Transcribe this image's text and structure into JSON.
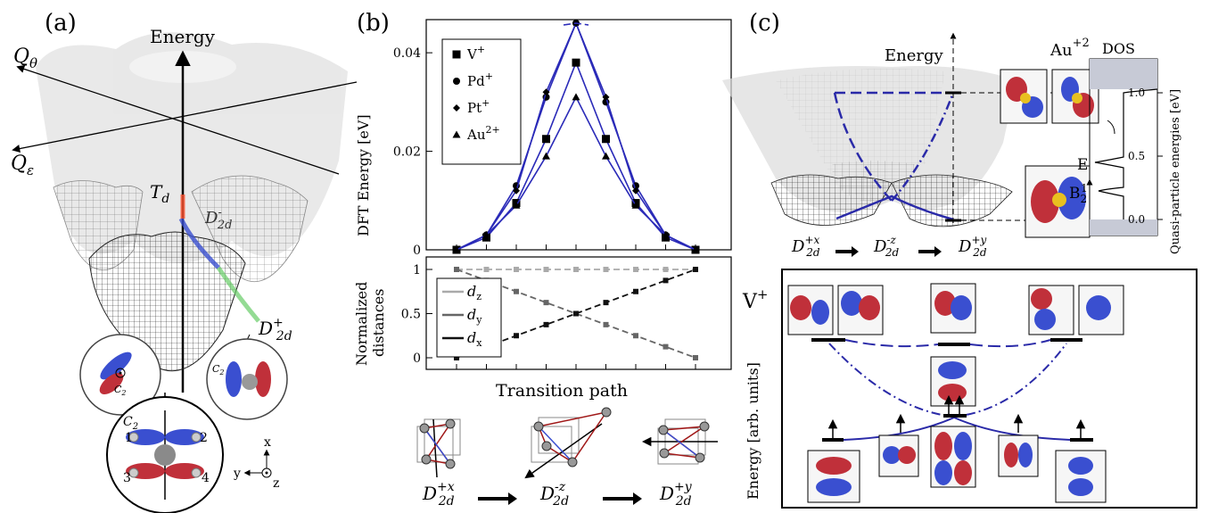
{
  "panels": {
    "a": {
      "label": "(a)",
      "axis_energy": "Energy",
      "axis_q_theta": "Q",
      "axis_q_theta_sub": "θ",
      "axis_q_eps": "Q",
      "axis_q_eps_sub": "ε",
      "td_label": "T",
      "td_sub": "d",
      "d2d_minus": "D",
      "d2d_minus_sub": "2d",
      "d2d_minus_sup": "-",
      "d2d_plus": "D",
      "d2d_plus_sub": "2d",
      "d2d_plus_sup": "+",
      "c2": "C",
      "c2_sub": "2",
      "atom_labels": [
        "1",
        "2",
        "3",
        "4"
      ],
      "coord_x": "x",
      "coord_y": "y",
      "coord_z": "z"
    },
    "b": {
      "label": "(b)",
      "top_chart_ylabel": "DFT Energy [eV]",
      "bottom_chart_ylabel_1": "Normalized",
      "bottom_chart_ylabel_2": "distances",
      "xlabel": "Transition path",
      "path_labels": [
        {
          "base": "D",
          "sub": "2d",
          "sup": "+x"
        },
        {
          "base": "D",
          "sub": "2d",
          "sup": "-z"
        },
        {
          "base": "D",
          "sub": "2d",
          "sup": "+y"
        }
      ]
    },
    "c": {
      "label": "(c)",
      "axis_energy": "Energy",
      "ion_label": "Au",
      "ion_charge": "+2",
      "dos_label": "DOS",
      "dos_ylabel": "Quasi-particle energies [eV]",
      "dos_ticks": [
        "1.0",
        "0.5",
        "0.0"
      ],
      "level_e": "E",
      "level_b2": "B",
      "level_b2_sub": "2",
      "level_b2_sup": "1",
      "path_labels": [
        {
          "base": "D",
          "sub": "2d",
          "sup": "+x"
        },
        {
          "base": "D",
          "sub": "2d",
          "sup": "-z"
        },
        {
          "base": "D",
          "sub": "2d",
          "sup": "+y"
        }
      ],
      "v_label": "V",
      "v_charge": "+",
      "box_ylabel": "Energy [arb. units]"
    }
  },
  "chart_data": [
    {
      "type": "line",
      "name": "dft-energy",
      "ylabel": "DFT Energy [eV]",
      "ylim": [
        0,
        0.046
      ],
      "yticks": [
        0,
        0.02,
        0.04
      ],
      "ytick_labels": [
        "0",
        "0.02",
        "0.04"
      ],
      "x": [
        0,
        1,
        2,
        3,
        4,
        5,
        6,
        7,
        8,
        9,
        10
      ],
      "legend_position": "top-left",
      "series": [
        {
          "name": "V",
          "name_sup": "+",
          "marker": "square",
          "values": [
            0,
            0.0025,
            0.0095,
            0.0225,
            0.038,
            0.038,
            0.0225,
            0.0095,
            0.0025,
            0,
            0
          ]
        },
        {
          "name": "Pd",
          "name_sup": "+",
          "marker": "circle",
          "values": [
            0,
            0.003,
            0.013,
            0.031,
            0.046,
            0.046,
            0.03,
            0.013,
            0.003,
            0,
            0
          ]
        },
        {
          "name": "Pt",
          "name_sup": "+",
          "marker": "diamond",
          "values": [
            0,
            0.003,
            0.012,
            0.032,
            0.046,
            0.046,
            0.031,
            0.012,
            0.003,
            0,
            0
          ]
        },
        {
          "name": "Au",
          "name_sup": "2+",
          "marker": "triangle",
          "values": [
            0,
            0.003,
            0.009,
            0.019,
            0.031,
            0.031,
            0.019,
            0.009,
            0.003,
            0,
            0
          ]
        }
      ]
    },
    {
      "type": "line",
      "name": "normalized-distances",
      "ylabel": "Normalized distances",
      "xlabel": "Transition path",
      "ylim": [
        0,
        1
      ],
      "yticks": [
        0,
        0.5,
        1
      ],
      "ytick_labels": [
        "0",
        "0.5",
        "1"
      ],
      "x": [
        0,
        1,
        2,
        3,
        4,
        5,
        6,
        7,
        8
      ],
      "series": [
        {
          "name": "d",
          "name_sub": "z",
          "color": "#aaaaaa",
          "values": [
            1,
            1,
            1,
            1,
            1,
            1,
            1,
            1,
            1
          ]
        },
        {
          "name": "d",
          "name_sub": "y",
          "color": "#666666",
          "values": [
            1,
            0.875,
            0.75,
            0.625,
            0.5,
            0.375,
            0.25,
            0.125,
            0
          ]
        },
        {
          "name": "d",
          "name_sub": "x",
          "color": "#111111",
          "values": [
            0,
            0.125,
            0.25,
            0.375,
            0.5,
            0.625,
            0.75,
            0.875,
            1
          ]
        }
      ]
    }
  ]
}
